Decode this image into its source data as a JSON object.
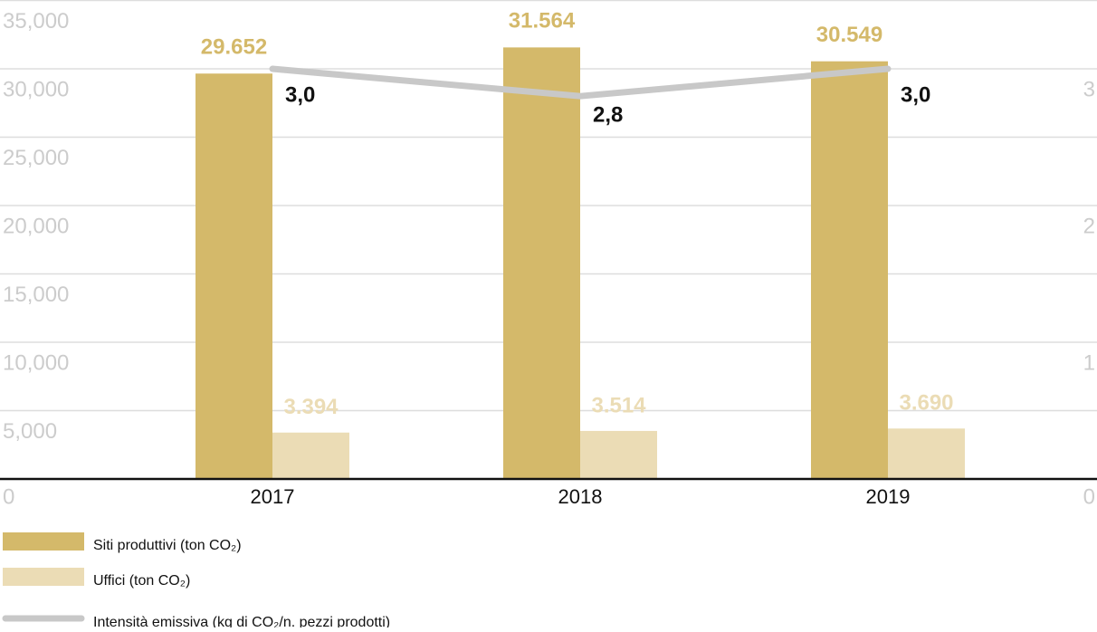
{
  "chart_data": {
    "type": "bar",
    "categories": [
      "2017",
      "2018",
      "2019"
    ],
    "series": [
      {
        "name": "Siti produttivi (ton CO₂)",
        "color": "#d4b96a",
        "values": [
          29652,
          31564,
          30549
        ],
        "value_labels": [
          "29.652",
          "31.564",
          "30.549"
        ]
      },
      {
        "name": "Uffici (ton CO₂)",
        "color": "#ebdcb5",
        "values": [
          3394,
          3514,
          3690
        ],
        "value_labels": [
          "3.394",
          "3.514",
          "3.690"
        ]
      },
      {
        "name": "Intensità emissiva (kg di CO₂/n. pezzi prodotti)",
        "color": "#c8c8c8",
        "type": "line",
        "axis": "y2",
        "values": [
          3.0,
          2.8,
          3.0
        ],
        "value_labels": [
          "3,0",
          "2,8",
          "3,0"
        ]
      }
    ],
    "ylim": [
      0,
      35000
    ],
    "yticks": [
      0,
      {
        "value": 5000,
        "label": "5,000"
      },
      {
        "value": 10000,
        "label": "10,000"
      },
      {
        "value": 15000,
        "label": "15,000"
      },
      {
        "value": 20000,
        "label": "20,000"
      },
      {
        "value": 25000,
        "label": "25,000"
      },
      {
        "value": 30000,
        "label": "30,000"
      },
      {
        "value": 35000,
        "label": "35,000"
      }
    ],
    "y2lim": [
      0,
      3.5
    ],
    "y2ticks": [
      0,
      1,
      2,
      3
    ],
    "grid": true
  }
}
